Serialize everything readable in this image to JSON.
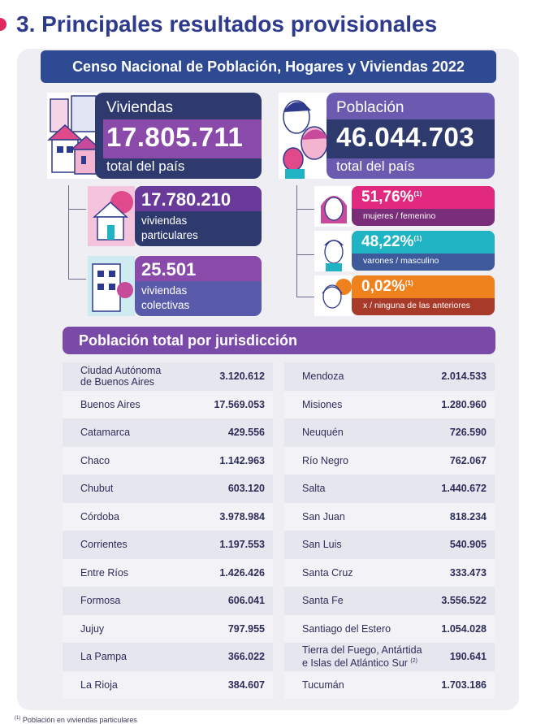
{
  "header": {
    "title": "3. Principales resultados provisionales"
  },
  "census_banner": "Censo Nacional de Población, Hogares y Viviendas 2022",
  "viviendas": {
    "caption": "Viviendas",
    "value": "17.805.711",
    "subtitle": "total del país"
  },
  "poblacion": {
    "caption": "Población",
    "value": "46.044.703",
    "subtitle": "total del país"
  },
  "viviendas_detail": [
    {
      "value": "17.780.210",
      "line1": "viviendas",
      "line2": "particulares"
    },
    {
      "value": "25.501",
      "line1": "viviendas",
      "line2": "colectivas"
    }
  ],
  "poblacion_detail": [
    {
      "value": "51,76%",
      "note": "(1)",
      "label": "mujeres / femenino"
    },
    {
      "value": "48,22%",
      "note": "(1)",
      "label": "varones / masculino"
    },
    {
      "value": "0,02%",
      "note": "(1)",
      "label": "x / ninguna de las anteriores"
    }
  ],
  "jurisdiction_title": "Población total por jurisdicción",
  "jurisdictions_left": [
    {
      "name1": "Ciudad Autónoma",
      "name2": "de Buenos Aires",
      "value": "3.120.612"
    },
    {
      "name1": "Buenos Aires",
      "value": "17.569.053"
    },
    {
      "name1": "Catamarca",
      "value": "429.556"
    },
    {
      "name1": "Chaco",
      "value": "1.142.963"
    },
    {
      "name1": "Chubut",
      "value": "603.120"
    },
    {
      "name1": "Córdoba",
      "value": "3.978.984"
    },
    {
      "name1": "Corrientes",
      "value": "1.197.553"
    },
    {
      "name1": "Entre Ríos",
      "value": "1.426.426"
    },
    {
      "name1": "Formosa",
      "value": "606.041"
    },
    {
      "name1": "Jujuy",
      "value": "797.955"
    },
    {
      "name1": "La Pampa",
      "value": "366.022"
    },
    {
      "name1": "La Rioja",
      "value": "384.607"
    }
  ],
  "jurisdictions_right": [
    {
      "name1": "Mendoza",
      "value": "2.014.533"
    },
    {
      "name1": "Misiones",
      "value": "1.280.960"
    },
    {
      "name1": "Neuquén",
      "value": "726.590"
    },
    {
      "name1": "Río Negro",
      "value": "762.067"
    },
    {
      "name1": "Salta",
      "value": "1.440.672"
    },
    {
      "name1": "San Juan",
      "value": "818.234"
    },
    {
      "name1": "San Luis",
      "value": "540.905"
    },
    {
      "name1": "Santa Cruz",
      "value": "333.473"
    },
    {
      "name1": "Santa Fe",
      "value": "3.556.522"
    },
    {
      "name1": "Santiago del Estero",
      "value": "1.054.028"
    },
    {
      "name1": "Tierra del Fuego, Antártida",
      "name2": "e Islas del Atlántico Sur",
      "note": "(2)",
      "value": "190.641"
    },
    {
      "name1": "Tucumán",
      "value": "1.703.186"
    }
  ],
  "footnote": {
    "mark": "(1)",
    "text": " Población en viviendas particulares"
  },
  "colors": {
    "title": "#2e3a8c",
    "navy": "#2e4a92",
    "purple": "#7a4aa8",
    "pink": "#e0295f",
    "teal": "#1fb3c4",
    "orange": "#f0821e",
    "panel": "#eeeef3"
  },
  "icons": [
    "houses-illustration",
    "faces-illustration",
    "house-icon",
    "building-icon",
    "woman-face-icon",
    "man-face-icon",
    "person-face-icon"
  ]
}
